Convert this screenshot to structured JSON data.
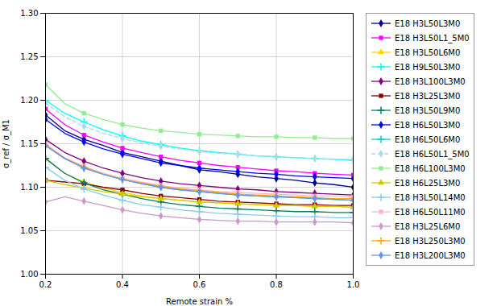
{
  "chart_data": {
    "type": "line",
    "xlabel": "Remote strain %",
    "ylabel": "σ_ref / σ_M1",
    "xlim": [
      0.2,
      1.0
    ],
    "ylim": [
      1.0,
      1.3
    ],
    "xticks": [
      0.2,
      0.4,
      0.6,
      0.8,
      {
        "value": 1.0,
        "label": "1.0"
      }
    ],
    "yticks": [
      {
        "value": 1.0,
        "label": "1.00"
      },
      1.05,
      {
        "value": 1.1,
        "label": "1.10"
      },
      1.15,
      {
        "value": 1.2,
        "label": "1.20"
      },
      1.25,
      {
        "value": 1.3,
        "label": "1.30"
      }
    ],
    "grid": true,
    "legend": "right",
    "x": [
      0.2,
      0.25,
      0.3,
      0.35,
      0.4,
      0.45,
      0.5,
      0.55,
      0.6,
      0.65,
      0.7,
      0.75,
      0.8,
      0.85,
      0.9,
      0.95,
      1.0
    ],
    "series": [
      {
        "name": "E18 H3L50L3M0",
        "color": "#00008B",
        "marker": "diamond",
        "line_style": "solid",
        "values": [
          1.183,
          1.165,
          1.155,
          1.148,
          1.14,
          1.135,
          1.13,
          1.125,
          1.12,
          1.118,
          1.115,
          1.112,
          1.11,
          1.108,
          1.105,
          1.103,
          1.1
        ]
      },
      {
        "name": "E18 H3L50L1_5M0",
        "color": "#FF00FF",
        "marker": "square",
        "line_style": "solid",
        "values": [
          1.19,
          1.172,
          1.16,
          1.152,
          1.145,
          1.14,
          1.135,
          1.131,
          1.128,
          1.125,
          1.123,
          1.121,
          1.119,
          1.118,
          1.116,
          1.115,
          1.114
        ]
      },
      {
        "name": "E18 H3L50L6M0",
        "color": "#FFD700",
        "marker": "triangle",
        "line_style": "solid",
        "values": [
          1.133,
          1.116,
          1.106,
          1.099,
          1.094,
          1.09,
          1.087,
          1.085,
          1.083,
          1.082,
          1.081,
          1.08,
          1.079,
          1.079,
          1.078,
          1.078,
          1.077
        ]
      },
      {
        "name": "E18 H9L50L3M0",
        "color": "#00FFFF",
        "marker": "plus",
        "line_style": "solid",
        "values": [
          1.2,
          1.185,
          1.175,
          1.166,
          1.159,
          1.153,
          1.149,
          1.145,
          1.142,
          1.14,
          1.138,
          1.136,
          1.135,
          1.134,
          1.133,
          1.132,
          1.131
        ]
      },
      {
        "name": "E18 H3L100L3M0",
        "color": "#800080",
        "marker": "diamond",
        "line_style": "solid",
        "values": [
          1.155,
          1.14,
          1.13,
          1.122,
          1.116,
          1.111,
          1.107,
          1.104,
          1.102,
          1.1,
          1.098,
          1.097,
          1.095,
          1.094,
          1.093,
          1.092,
          1.091
        ]
      },
      {
        "name": "E18 H3L25L3M0",
        "color": "#8B0000",
        "marker": "square",
        "line_style": "solid",
        "values": [
          1.108,
          1.106,
          1.104,
          1.1,
          1.097,
          1.093,
          1.09,
          1.088,
          1.086,
          1.084,
          1.083,
          1.082,
          1.081,
          1.08,
          1.08,
          1.079,
          1.079
        ]
      },
      {
        "name": "E18 H3L50L9M0",
        "color": "#008060",
        "marker": "plus",
        "line_style": "solid",
        "values": [
          1.133,
          1.116,
          1.105,
          1.097,
          1.092,
          1.087,
          1.083,
          1.08,
          1.078,
          1.076,
          1.075,
          1.074,
          1.073,
          1.072,
          1.072,
          1.071,
          1.071
        ]
      },
      {
        "name": "E18 H6L50L3M0",
        "color": "#0000FF",
        "marker": "diamond",
        "line_style": "solid",
        "values": [
          1.178,
          1.162,
          1.152,
          1.144,
          1.138,
          1.133,
          1.128,
          1.125,
          1.122,
          1.12,
          1.118,
          1.116,
          1.115,
          1.113,
          1.112,
          1.111,
          1.11
        ]
      },
      {
        "name": "E18 H6L50L6M0",
        "color": "#00CED1",
        "marker": "plus",
        "line_style": "solid",
        "values": [
          1.148,
          1.133,
          1.122,
          1.115,
          1.109,
          1.104,
          1.1,
          1.097,
          1.095,
          1.093,
          1.091,
          1.09,
          1.089,
          1.088,
          1.087,
          1.086,
          1.085
        ]
      },
      {
        "name": "E18 H6L50L1_5M0",
        "color": "#ADD8E6",
        "marker": "diamond",
        "line_style": "dashed",
        "values": [
          1.197,
          1.181,
          1.17,
          1.162,
          1.156,
          1.151,
          1.147,
          1.144,
          1.141,
          1.139,
          1.138,
          1.136,
          1.135,
          1.134,
          1.133,
          1.132,
          1.132
        ]
      },
      {
        "name": "E18 H6L100L3M0",
        "color": "#90EE90",
        "marker": "square",
        "line_style": "solid",
        "values": [
          1.218,
          1.196,
          1.185,
          1.178,
          1.172,
          1.168,
          1.165,
          1.163,
          1.161,
          1.16,
          1.159,
          1.158,
          1.158,
          1.157,
          1.157,
          1.156,
          1.156
        ]
      },
      {
        "name": "E18 H6L25L3M0",
        "color": "#CCCC00",
        "marker": "triangle",
        "line_style": "solid",
        "values": [
          1.108,
          1.103,
          1.099,
          1.095,
          1.092,
          1.089,
          1.087,
          1.085,
          1.083,
          1.082,
          1.081,
          1.08,
          1.079,
          1.079,
          1.078,
          1.078,
          1.077
        ]
      },
      {
        "name": "E18 H3L50L14M0",
        "color": "#87CEEB",
        "marker": "plus",
        "line_style": "solid",
        "values": [
          1.123,
          1.108,
          1.098,
          1.091,
          1.085,
          1.08,
          1.077,
          1.074,
          1.072,
          1.07,
          1.069,
          1.068,
          1.067,
          1.066,
          1.066,
          1.065,
          1.065
        ]
      },
      {
        "name": "E18 H6L50L11M0",
        "color": "#FFB6C1",
        "marker": "square",
        "line_style": "solid",
        "values": [
          1.15,
          1.134,
          1.124,
          1.116,
          1.11,
          1.106,
          1.102,
          1.099,
          1.097,
          1.095,
          1.094,
          1.093,
          1.092,
          1.091,
          1.09,
          1.09,
          1.089
        ]
      },
      {
        "name": "E18 H3L25L6M0",
        "color": "#CC99CC",
        "marker": "diamond",
        "line_style": "solid",
        "values": [
          1.083,
          1.089,
          1.084,
          1.079,
          1.074,
          1.07,
          1.067,
          1.065,
          1.063,
          1.062,
          1.061,
          1.061,
          1.06,
          1.06,
          1.06,
          1.06,
          1.059
        ]
      },
      {
        "name": "E18 H3L250L3M0",
        "color": "#FFA500",
        "marker": "plus",
        "line_style": "solid",
        "values": [
          1.148,
          1.133,
          1.123,
          1.115,
          1.109,
          1.105,
          1.101,
          1.098,
          1.096,
          1.094,
          1.092,
          1.091,
          1.09,
          1.089,
          1.088,
          1.087,
          1.087
        ]
      },
      {
        "name": "E18 H3L200L3M0",
        "color": "#6495ED",
        "marker": "diamond",
        "line_style": "solid",
        "values": [
          1.148,
          1.133,
          1.122,
          1.115,
          1.109,
          1.104,
          1.1,
          1.097,
          1.095,
          1.093,
          1.091,
          1.09,
          1.089,
          1.088,
          1.087,
          1.086,
          1.085
        ]
      }
    ]
  }
}
